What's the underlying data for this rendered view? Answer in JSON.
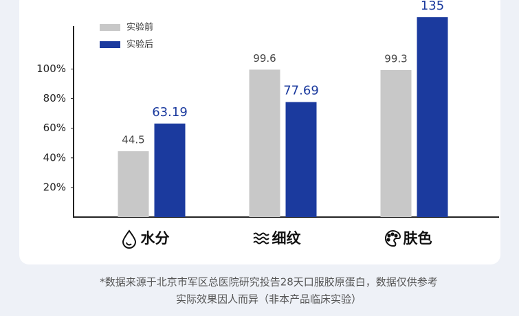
{
  "chart_data": {
    "type": "bar",
    "categories": [
      "水分",
      "细纹",
      "肤色"
    ],
    "series": [
      {
        "name": "实验前",
        "color": "#c8c8c8",
        "values": [
          44.5,
          99.6,
          99.3
        ]
      },
      {
        "name": "实验后",
        "color": "#1b3a9e",
        "values": [
          63.19,
          77.69,
          135
        ]
      }
    ],
    "ylim": [
      0,
      129
    ],
    "yticks": [
      {
        "value": 20,
        "label": "20%"
      },
      {
        "value": 40,
        "label": "40%"
      },
      {
        "value": 60,
        "label": "60%"
      },
      {
        "value": 80,
        "label": "80%"
      },
      {
        "value": 100,
        "label": "100%"
      }
    ],
    "grid": false,
    "legend": "top-left"
  },
  "footnote": [
    "*数据来源于北京市军区总医院研究投告28天口服胶原蛋白，数据仅供参考",
    "实际效果因人而异（非本产品临床实验）"
  ]
}
